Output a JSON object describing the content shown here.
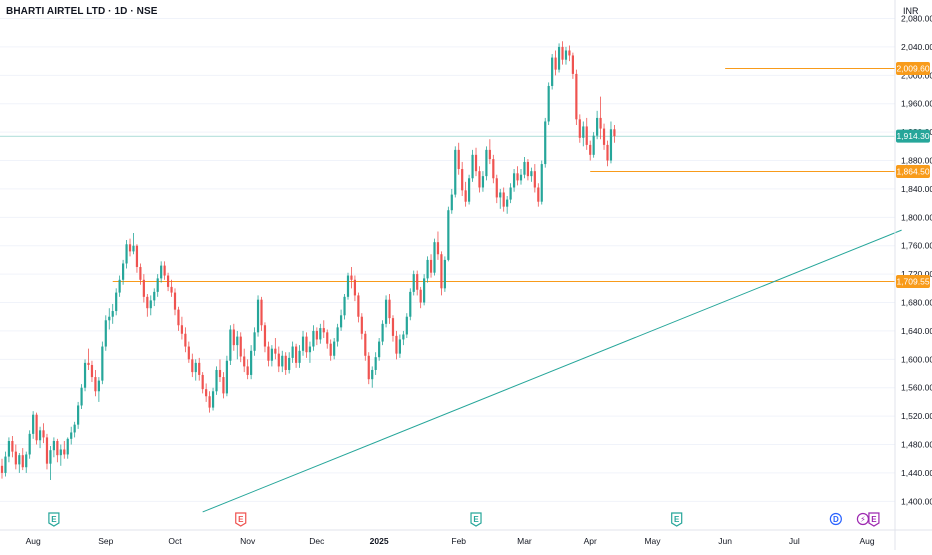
{
  "header": {
    "title": "BHARTI AIRTEL LTD · 1D · NSE",
    "currency": "INR"
  },
  "chart_data": {
    "type": "candlestick",
    "y_ticks": [
      1400,
      1440,
      1480,
      1520,
      1560,
      1600,
      1640,
      1680,
      1720,
      1760,
      1800,
      1840,
      1880,
      1920,
      1960,
      2000,
      2040,
      2080
    ],
    "y_tick_labels": [
      "1,400.00",
      "1,440.00",
      "1,480.00",
      "1,520.00",
      "1,560.00",
      "1,600.00",
      "1,640.00",
      "1,680.00",
      "1,720.00",
      "1,760.00",
      "1,800.00",
      "1,840.00",
      "1,880.00",
      "1,920.00",
      "1,960.00",
      "2,000.00",
      "2,040.00",
      "2,080.00"
    ],
    "ylim": [
      1392,
      2092
    ],
    "x_labels": [
      {
        "label": "Aug",
        "index": 9
      },
      {
        "label": "Sep",
        "index": 30
      },
      {
        "label": "Oct",
        "index": 50
      },
      {
        "label": "Nov",
        "index": 71
      },
      {
        "label": "Dec",
        "index": 91
      },
      {
        "label": "2025",
        "index": 109
      },
      {
        "label": "Feb",
        "index": 132
      },
      {
        "label": "Mar",
        "index": 151
      },
      {
        "label": "Apr",
        "index": 170
      },
      {
        "label": "May",
        "index": 188
      },
      {
        "label": "Jun",
        "index": 209
      },
      {
        "label": "Jul",
        "index": 229
      },
      {
        "label": "Aug",
        "index": 250
      }
    ],
    "horizontal_levels": [
      {
        "price": 2009.6,
        "label": "2,009.60",
        "start_index": 209,
        "color": "#f89b1a"
      },
      {
        "price": 1864.5,
        "label": "1,864.50",
        "start_index": 170,
        "color": "#f89b1a"
      },
      {
        "price": 1709.55,
        "label": "1,709.55",
        "start_index": 32,
        "color": "#f89b1a"
      }
    ],
    "last_price": {
      "price": 1914.3,
      "label": "1,914.30",
      "color": "#26a69a"
    },
    "trendline": {
      "from": {
        "index": 58,
        "price": 1385
      },
      "to": {
        "index": 260,
        "price": 1782
      },
      "color": "#26a69a"
    },
    "events": [
      {
        "letter": "E",
        "index": 15,
        "kind": "earnings-past"
      },
      {
        "letter": "E",
        "index": 69,
        "kind": "earnings-neg"
      },
      {
        "letter": "E",
        "index": 137,
        "kind": "earnings-past"
      },
      {
        "letter": "E",
        "index": 195,
        "kind": "earnings-past"
      },
      {
        "letter": "D",
        "index": 241,
        "kind": "dividend"
      },
      {
        "letter": "E",
        "index": 252,
        "kind": "earnings-upcoming"
      }
    ],
    "ohlc": [
      [
        1450,
        1460,
        1432,
        1440
      ],
      [
        1440,
        1470,
        1435,
        1463
      ],
      [
        1463,
        1490,
        1455,
        1485
      ],
      [
        1485,
        1492,
        1462,
        1470
      ],
      [
        1470,
        1480,
        1445,
        1452
      ],
      [
        1452,
        1468,
        1440,
        1465
      ],
      [
        1465,
        1475,
        1444,
        1448
      ],
      [
        1448,
        1470,
        1440,
        1466
      ],
      [
        1466,
        1500,
        1460,
        1495
      ],
      [
        1495,
        1527,
        1488,
        1522
      ],
      [
        1522,
        1525,
        1480,
        1486
      ],
      [
        1486,
        1505,
        1475,
        1500
      ],
      [
        1500,
        1510,
        1482,
        1490
      ],
      [
        1490,
        1495,
        1445,
        1453
      ],
      [
        1453,
        1478,
        1430,
        1472
      ],
      [
        1472,
        1490,
        1462,
        1485
      ],
      [
        1485,
        1488,
        1455,
        1465
      ],
      [
        1465,
        1480,
        1450,
        1473
      ],
      [
        1473,
        1485,
        1460,
        1466
      ],
      [
        1466,
        1490,
        1460,
        1488
      ],
      [
        1488,
        1505,
        1480,
        1497
      ],
      [
        1497,
        1512,
        1490,
        1508
      ],
      [
        1508,
        1540,
        1502,
        1535
      ],
      [
        1535,
        1565,
        1530,
        1560
      ],
      [
        1560,
        1600,
        1555,
        1595
      ],
      [
        1595,
        1615,
        1585,
        1592
      ],
      [
        1592,
        1598,
        1568,
        1575
      ],
      [
        1575,
        1585,
        1548,
        1555
      ],
      [
        1555,
        1575,
        1540,
        1570
      ],
      [
        1570,
        1625,
        1565,
        1618
      ],
      [
        1618,
        1662,
        1612,
        1655
      ],
      [
        1655,
        1672,
        1642,
        1660
      ],
      [
        1660,
        1678,
        1650,
        1668
      ],
      [
        1668,
        1700,
        1662,
        1694
      ],
      [
        1694,
        1718,
        1688,
        1712
      ],
      [
        1712,
        1740,
        1705,
        1735
      ],
      [
        1735,
        1768,
        1728,
        1762
      ],
      [
        1762,
        1770,
        1745,
        1752
      ],
      [
        1752,
        1778,
        1748,
        1760
      ],
      [
        1760,
        1762,
        1722,
        1730
      ],
      [
        1730,
        1735,
        1705,
        1712
      ],
      [
        1712,
        1720,
        1680,
        1688
      ],
      [
        1688,
        1692,
        1660,
        1672
      ],
      [
        1672,
        1690,
        1662,
        1683
      ],
      [
        1683,
        1700,
        1675,
        1695
      ],
      [
        1695,
        1720,
        1688,
        1714
      ],
      [
        1714,
        1738,
        1708,
        1732
      ],
      [
        1732,
        1738,
        1712,
        1718
      ],
      [
        1718,
        1722,
        1696,
        1702
      ],
      [
        1702,
        1712,
        1688,
        1694
      ],
      [
        1694,
        1700,
        1662,
        1670
      ],
      [
        1670,
        1674,
        1640,
        1648
      ],
      [
        1648,
        1660,
        1628,
        1636
      ],
      [
        1636,
        1645,
        1610,
        1618
      ],
      [
        1618,
        1625,
        1595,
        1600
      ],
      [
        1600,
        1608,
        1575,
        1582
      ],
      [
        1582,
        1600,
        1570,
        1595
      ],
      [
        1595,
        1602,
        1570,
        1578
      ],
      [
        1578,
        1582,
        1552,
        1558
      ],
      [
        1558,
        1566,
        1540,
        1548
      ],
      [
        1548,
        1555,
        1525,
        1532
      ],
      [
        1532,
        1560,
        1528,
        1555
      ],
      [
        1555,
        1590,
        1550,
        1585
      ],
      [
        1585,
        1600,
        1568,
        1575
      ],
      [
        1575,
        1582,
        1545,
        1552
      ],
      [
        1552,
        1605,
        1548,
        1598
      ],
      [
        1598,
        1648,
        1592,
        1642
      ],
      [
        1642,
        1650,
        1612,
        1620
      ],
      [
        1620,
        1640,
        1600,
        1632
      ],
      [
        1632,
        1638,
        1596,
        1604
      ],
      [
        1604,
        1615,
        1582,
        1590
      ],
      [
        1590,
        1600,
        1572,
        1578
      ],
      [
        1578,
        1620,
        1572,
        1612
      ],
      [
        1612,
        1645,
        1605,
        1638
      ],
      [
        1638,
        1690,
        1632,
        1684
      ],
      [
        1684,
        1688,
        1640,
        1648
      ],
      [
        1648,
        1652,
        1610,
        1618
      ],
      [
        1618,
        1625,
        1590,
        1598
      ],
      [
        1598,
        1620,
        1590,
        1615
      ],
      [
        1615,
        1630,
        1600,
        1608
      ],
      [
        1608,
        1618,
        1582,
        1590
      ],
      [
        1590,
        1612,
        1582,
        1605
      ],
      [
        1605,
        1610,
        1578,
        1585
      ],
      [
        1585,
        1610,
        1580,
        1602
      ],
      [
        1602,
        1625,
        1595,
        1618
      ],
      [
        1618,
        1622,
        1588,
        1595
      ],
      [
        1595,
        1620,
        1588,
        1612
      ],
      [
        1612,
        1640,
        1605,
        1632
      ],
      [
        1632,
        1638,
        1602,
        1610
      ],
      [
        1610,
        1625,
        1595,
        1618
      ],
      [
        1618,
        1648,
        1612,
        1640
      ],
      [
        1640,
        1645,
        1620,
        1628
      ],
      [
        1628,
        1650,
        1622,
        1644
      ],
      [
        1644,
        1655,
        1630,
        1638
      ],
      [
        1638,
        1642,
        1615,
        1622
      ],
      [
        1622,
        1628,
        1598,
        1605
      ],
      [
        1605,
        1630,
        1600,
        1625
      ],
      [
        1625,
        1650,
        1618,
        1645
      ],
      [
        1645,
        1670,
        1640,
        1662
      ],
      [
        1662,
        1692,
        1656,
        1688
      ],
      [
        1688,
        1722,
        1684,
        1718
      ],
      [
        1718,
        1730,
        1700,
        1712
      ],
      [
        1712,
        1718,
        1682,
        1690
      ],
      [
        1690,
        1694,
        1652,
        1660
      ],
      [
        1660,
        1665,
        1628,
        1636
      ],
      [
        1636,
        1640,
        1598,
        1605
      ],
      [
        1605,
        1610,
        1565,
        1572
      ],
      [
        1572,
        1590,
        1560,
        1585
      ],
      [
        1585,
        1610,
        1578,
        1603
      ],
      [
        1603,
        1630,
        1598,
        1625
      ],
      [
        1625,
        1655,
        1620,
        1650
      ],
      [
        1650,
        1690,
        1645,
        1684
      ],
      [
        1684,
        1692,
        1650,
        1658
      ],
      [
        1658,
        1662,
        1625,
        1633
      ],
      [
        1633,
        1640,
        1600,
        1608
      ],
      [
        1608,
        1635,
        1602,
        1628
      ],
      [
        1628,
        1640,
        1620,
        1635
      ],
      [
        1635,
        1665,
        1630,
        1660
      ],
      [
        1660,
        1700,
        1655,
        1695
      ],
      [
        1695,
        1725,
        1690,
        1720
      ],
      [
        1720,
        1725,
        1690,
        1698
      ],
      [
        1698,
        1702,
        1672,
        1680
      ],
      [
        1680,
        1720,
        1676,
        1714
      ],
      [
        1714,
        1745,
        1708,
        1740
      ],
      [
        1740,
        1748,
        1715,
        1722
      ],
      [
        1722,
        1770,
        1718,
        1765
      ],
      [
        1765,
        1780,
        1740,
        1748
      ],
      [
        1748,
        1752,
        1690,
        1700
      ],
      [
        1700,
        1745,
        1695,
        1740
      ],
      [
        1740,
        1815,
        1738,
        1810
      ],
      [
        1810,
        1840,
        1805,
        1832
      ],
      [
        1832,
        1900,
        1828,
        1895
      ],
      [
        1895,
        1905,
        1860,
        1868
      ],
      [
        1868,
        1878,
        1830,
        1838
      ],
      [
        1838,
        1850,
        1815,
        1822
      ],
      [
        1822,
        1860,
        1818,
        1855
      ],
      [
        1855,
        1895,
        1850,
        1888
      ],
      [
        1888,
        1898,
        1858,
        1865
      ],
      [
        1865,
        1872,
        1835,
        1842
      ],
      [
        1842,
        1865,
        1836,
        1858
      ],
      [
        1858,
        1900,
        1852,
        1895
      ],
      [
        1895,
        1910,
        1875,
        1882
      ],
      [
        1882,
        1888,
        1848,
        1855
      ],
      [
        1855,
        1860,
        1820,
        1828
      ],
      [
        1828,
        1840,
        1812,
        1835
      ],
      [
        1835,
        1842,
        1808,
        1815
      ],
      [
        1815,
        1830,
        1805,
        1825
      ],
      [
        1825,
        1848,
        1820,
        1842
      ],
      [
        1842,
        1868,
        1836,
        1862
      ],
      [
        1862,
        1872,
        1845,
        1852
      ],
      [
        1852,
        1868,
        1846,
        1860
      ],
      [
        1860,
        1885,
        1855,
        1878
      ],
      [
        1878,
        1882,
        1852,
        1858
      ],
      [
        1858,
        1870,
        1850,
        1865
      ],
      [
        1865,
        1875,
        1835,
        1842
      ],
      [
        1842,
        1848,
        1815,
        1822
      ],
      [
        1822,
        1880,
        1818,
        1875
      ],
      [
        1875,
        1940,
        1870,
        1935
      ],
      [
        1935,
        1990,
        1930,
        1985
      ],
      [
        1985,
        2030,
        1980,
        2025
      ],
      [
        2025,
        2035,
        2000,
        2008
      ],
      [
        2008,
        2045,
        2004,
        2040
      ],
      [
        2040,
        2048,
        2015,
        2022
      ],
      [
        2022,
        2040,
        2015,
        2035
      ],
      [
        2035,
        2042,
        2020,
        2028
      ],
      [
        2028,
        2032,
        1995,
        2002
      ],
      [
        2002,
        2008,
        1930,
        1938
      ],
      [
        1938,
        1945,
        1905,
        1912
      ],
      [
        1912,
        1935,
        1900,
        1928
      ],
      [
        1928,
        1940,
        1895,
        1902
      ],
      [
        1902,
        1908,
        1880,
        1888
      ],
      [
        1888,
        1920,
        1884,
        1915
      ],
      [
        1915,
        1950,
        1910,
        1940
      ],
      [
        1940,
        1970,
        1910,
        1925
      ],
      [
        1925,
        1932,
        1895,
        1902
      ],
      [
        1902,
        1908,
        1872,
        1880
      ],
      [
        1880,
        1935,
        1876,
        1924
      ],
      [
        1924,
        1930,
        1905,
        1914.3
      ]
    ]
  },
  "colors": {
    "up": "#26a69a",
    "down": "#ef5350",
    "grid": "#f0f3fa",
    "axis_text": "#131722",
    "trendline": "#26a69a",
    "level": "#f89b1a"
  }
}
